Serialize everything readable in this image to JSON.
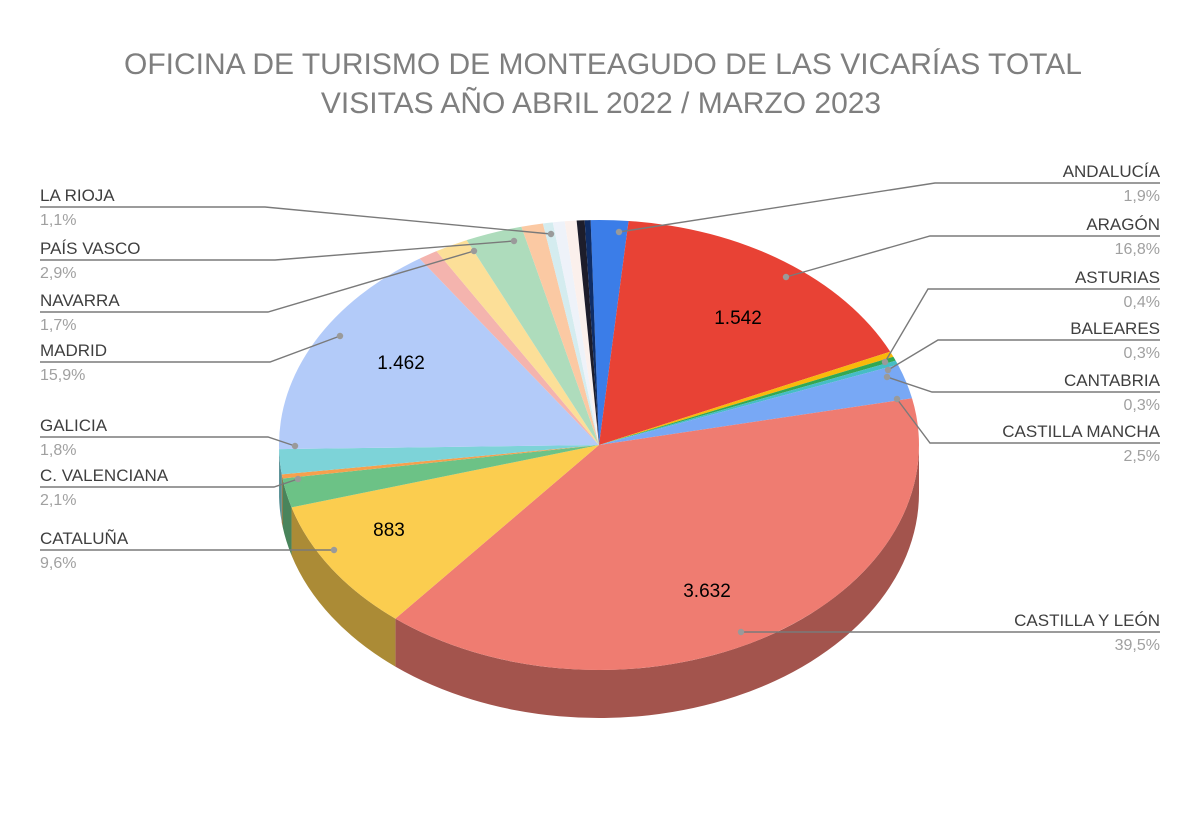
{
  "chart_data": {
    "type": "pie",
    "title": "OFICINA DE TURISMO DE MONTEAGUDO DE LAS VICARÍAS TOTAL VISITAS AÑO ABRIL 2022 / MARZO 2023",
    "title_lines": [
      "OFICINA DE TURISMO DE MONTEAGUDO DE LAS VICARÍAS TOTAL",
      "VISITAS AÑO ABRIL 2022 / MARZO 2023"
    ],
    "three_d": true,
    "slices": [
      {
        "label": "ANDALUCÍA",
        "percent": 1.9,
        "percent_text": "1,9%",
        "value_text": "",
        "color": "#3b7de8",
        "side": "right"
      },
      {
        "label": "ARAGÓN",
        "percent": 16.8,
        "percent_text": "16,8%",
        "value_text": "1.542",
        "color": "#e84235",
        "side": "right"
      },
      {
        "label": "ASTURIAS",
        "percent": 0.4,
        "percent_text": "0,4%",
        "value_text": "",
        "color": "#f9b90b",
        "side": "right"
      },
      {
        "label": "BALEARES",
        "percent": 0.3,
        "percent_text": "0,3%",
        "value_text": "",
        "color": "#33a852",
        "side": "right"
      },
      {
        "label": "CANTABRIA",
        "percent": 0.3,
        "percent_text": "0,3%",
        "value_text": "",
        "color": "#46bdc6",
        "side": "right"
      },
      {
        "label": "CASTILLA MANCHA",
        "percent": 2.5,
        "percent_text": "2,5%",
        "value_text": "",
        "color": "#78a8f5",
        "side": "right"
      },
      {
        "label": "CASTILLA Y LEÓN",
        "percent": 39.5,
        "percent_text": "39,5%",
        "value_text": "3.632",
        "color": "#ef7c71",
        "side": "right"
      },
      {
        "label": "CATALUÑA",
        "percent": 9.6,
        "percent_text": "9,6%",
        "value_text": "883",
        "color": "#fbcd4f",
        "side": "left"
      },
      {
        "label": "C. VALENCIANA",
        "percent": 2.1,
        "percent_text": "2,1%",
        "value_text": "",
        "color": "#6cc286",
        "side": "left"
      },
      {
        "label": "",
        "percent": 0.3,
        "percent_text": "",
        "value_text": "",
        "color": "#f6a04d",
        "side": "none"
      },
      {
        "label": "GALICIA",
        "percent": 1.8,
        "percent_text": "1,8%",
        "value_text": "",
        "color": "#7dd3d8",
        "side": "left"
      },
      {
        "label": "MADRID",
        "percent": 15.9,
        "percent_text": "15,9%",
        "value_text": "1.462",
        "color": "#b3cbf9",
        "side": "left"
      },
      {
        "label": "",
        "percent": 1.0,
        "percent_text": "",
        "value_text": "",
        "color": "#f4b4ae",
        "side": "none"
      },
      {
        "label": "NAVARRA",
        "percent": 1.7,
        "percent_text": "1,7%",
        "value_text": "",
        "color": "#fcdf98",
        "side": "left"
      },
      {
        "label": "PAÍS VASCO",
        "percent": 2.9,
        "percent_text": "2,9%",
        "value_text": "",
        "color": "#aedcbc",
        "side": "left"
      },
      {
        "label": "LA RIOJA",
        "percent": 1.1,
        "percent_text": "1,1%",
        "value_text": "",
        "color": "#fbc9a3",
        "side": "left"
      },
      {
        "label": "",
        "percent": 0.5,
        "percent_text": "",
        "value_text": "",
        "color": "#d4ecef",
        "side": "none"
      },
      {
        "label": "",
        "percent": 0.6,
        "percent_text": "",
        "value_text": "",
        "color": "#eef2f9",
        "side": "none"
      },
      {
        "label": "",
        "percent": 0.6,
        "percent_text": "",
        "value_text": "",
        "color": "#fbf0ec",
        "side": "none"
      },
      {
        "label": "",
        "percent": 0.4,
        "percent_text": "",
        "value_text": "",
        "color": "#1d1d2b",
        "side": "none"
      },
      {
        "label": "",
        "percent": 0.3,
        "percent_text": "",
        "value_text": "",
        "color": "#0f2d66",
        "side": "none"
      }
    ],
    "legend": "none",
    "label_style": "callout"
  },
  "colors": {
    "title": "#7f7f7f",
    "label_name": "#3f3f3f",
    "label_percent": "#a0a0a0",
    "leader_line": "#7a7a7a",
    "value_label": "#000000"
  }
}
